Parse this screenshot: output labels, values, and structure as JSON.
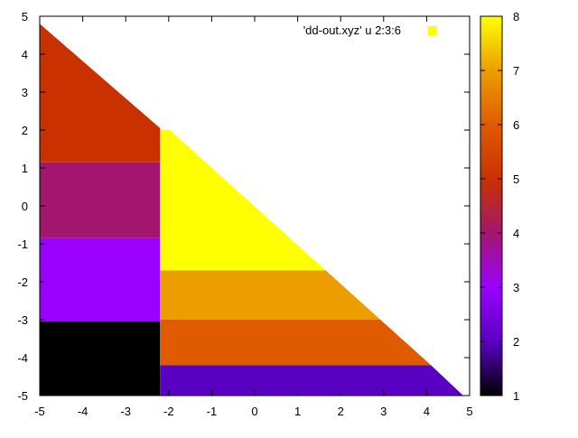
{
  "chart_data": {
    "type": "heatmap",
    "title": "",
    "xlabel": "",
    "ylabel": "",
    "legend": {
      "label": "'dd-out.xyz' u  2:3:6",
      "placement": "top-right"
    },
    "xlim": [
      -5,
      5
    ],
    "ylim": [
      -5,
      5
    ],
    "xticks": [
      "-5",
      "-4",
      "-3",
      "-2",
      "-1",
      "0",
      "1",
      "2",
      "3",
      "4",
      "5"
    ],
    "yticks": [
      "-5",
      "-4",
      "-3",
      "-2",
      "-1",
      "0",
      "1",
      "2",
      "3",
      "4",
      "5"
    ],
    "colorbar": {
      "range": [
        1,
        8
      ],
      "ticks": [
        "1",
        "2",
        "3",
        "4",
        "5",
        "6",
        "7",
        "8"
      ]
    },
    "palette": [
      "#000000",
      "#5a00c2",
      "#9b00ff",
      "#a3166e",
      "#c93200",
      "#e05a00",
      "#ec9e00",
      "#ffff00"
    ],
    "grid": false,
    "regions": [
      {
        "name": "region-value-5-upper-left",
        "value": 5,
        "x": [
          -5,
          -2.2
        ],
        "y": [
          1.15,
          4.8
        ],
        "shape": "triangle-left"
      },
      {
        "name": "region-value-4",
        "value": 4,
        "x": [
          -5,
          -2.2
        ],
        "y": [
          -0.85,
          1.15
        ]
      },
      {
        "name": "region-value-3",
        "value": 3,
        "x": [
          -5,
          -2.2
        ],
        "y": [
          -3.05,
          -0.85
        ]
      },
      {
        "name": "region-value-1",
        "value": 1,
        "x": [
          -5,
          -2.2
        ],
        "y": [
          -5,
          -3.05
        ]
      },
      {
        "name": "region-value-8",
        "value": 8,
        "x": [
          -2.2,
          1.5
        ],
        "y": [
          -1.7,
          2.0
        ],
        "shape": "triangle-right"
      },
      {
        "name": "region-value-7",
        "value": 7,
        "x": [
          -2.2,
          2.75
        ],
        "y": [
          -3.0,
          -1.7
        ],
        "shape": "triangle-right"
      },
      {
        "name": "region-value-6",
        "value": 6,
        "x": [
          -2.2,
          4.0
        ],
        "y": [
          -4.2,
          -3.0
        ],
        "shape": "triangle-right"
      },
      {
        "name": "region-value-2",
        "value": 2,
        "x": [
          -2.2,
          4.85
        ],
        "y": [
          -5,
          -4.2
        ],
        "shape": "triangle-right"
      }
    ]
  }
}
